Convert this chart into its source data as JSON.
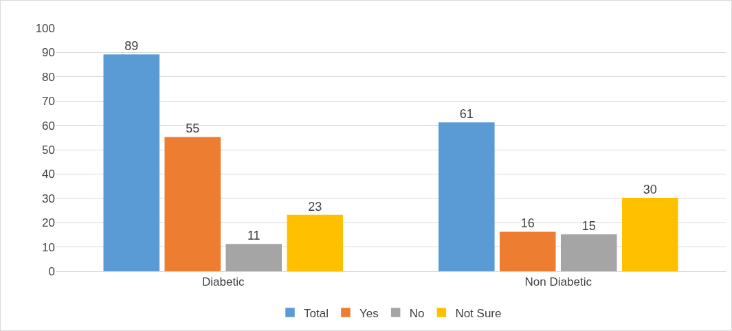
{
  "chart_data": {
    "type": "bar",
    "categories": [
      "Diabetic",
      "Non Diabetic"
    ],
    "series": [
      {
        "name": "Total",
        "color": "#5b9bd5",
        "values": [
          89,
          61
        ]
      },
      {
        "name": "Yes",
        "color": "#ed7d31",
        "values": [
          55,
          16
        ]
      },
      {
        "name": "No",
        "color": "#a5a5a5",
        "values": [
          11,
          15
        ]
      },
      {
        "name": "Not Sure",
        "color": "#ffc000",
        "values": [
          23,
          30
        ]
      }
    ],
    "ylim": [
      0,
      100
    ],
    "yticks": [
      0,
      10,
      20,
      30,
      40,
      50,
      60,
      70,
      80,
      90,
      100
    ],
    "grid": "y",
    "legend": "bottom",
    "data_labels": true
  }
}
